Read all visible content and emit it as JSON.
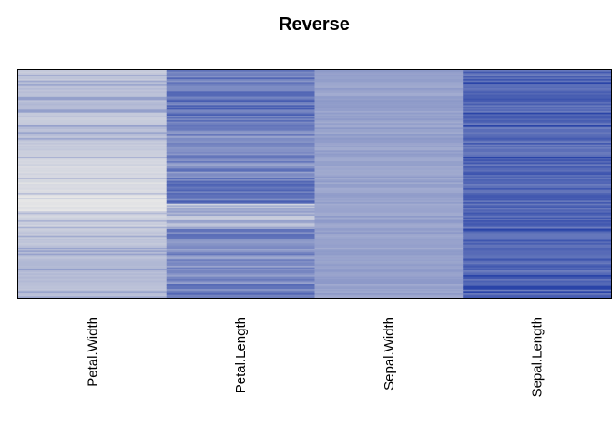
{
  "chart_data": {
    "type": "heatmap",
    "title": "Reverse",
    "xlabel": "",
    "ylabel": "",
    "columns": [
      "Petal.Width",
      "Petal.Length",
      "Sepal.Width",
      "Sepal.Length"
    ],
    "row_count": 150,
    "color_low": "#e6e6e6",
    "color_high": "#2a44a8",
    "legend": "none",
    "grid": false
  }
}
